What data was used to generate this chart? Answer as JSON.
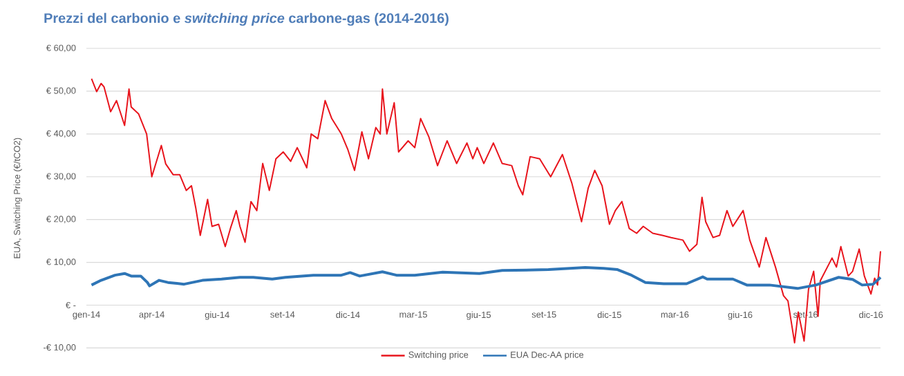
{
  "chart_data": {
    "type": "line",
    "title": "Prezzi del carbonio e *switching price* carbone-gas (2014-2016)",
    "ylabel": "EUA, Switching Price (€/tCO2)",
    "xlim": [
      "2014-01-02",
      "2016-12-18"
    ],
    "xticks": [
      {
        "value": "2014-01-02",
        "label": "gen-14"
      },
      {
        "value": "2014-04-01",
        "label": "apr-14"
      },
      {
        "value": "2014-06-29",
        "label": "giu-14"
      },
      {
        "value": "2014-09-26",
        "label": "set-14"
      },
      {
        "value": "2014-12-24",
        "label": "dic-14"
      },
      {
        "value": "2015-03-23",
        "label": "mar-15"
      },
      {
        "value": "2015-06-20",
        "label": "giu-15"
      },
      {
        "value": "2015-09-17",
        "label": "set-15"
      },
      {
        "value": "2015-12-15",
        "label": "dic-15"
      },
      {
        "value": "2016-03-13",
        "label": "mar-16"
      },
      {
        "value": "2016-06-10",
        "label": "giu-16"
      },
      {
        "value": "2016-09-07",
        "label": "set-16"
      },
      {
        "value": "2016-12-05",
        "label": "dic-16"
      }
    ],
    "ylim": [
      -10,
      60
    ],
    "yticks": [
      {
        "value": -10,
        "label": "-€ 10,00"
      },
      {
        "value": 0,
        "label": "€ -"
      },
      {
        "value": 10,
        "label": "€ 10,00"
      },
      {
        "value": 20,
        "label": "€ 20,00"
      },
      {
        "value": 30,
        "label": "€ 30,00"
      },
      {
        "value": 40,
        "label": "€ 40,00"
      },
      {
        "value": 50,
        "label": "€ 50,00"
      },
      {
        "value": 60,
        "label": "€ 60,00"
      }
    ],
    "grid": "y",
    "legend": "bottom",
    "series": [
      {
        "name": "Switching price",
        "color": "#e8141c",
        "x": [
          "2014-01-09",
          "2014-01-16",
          "2014-01-22",
          "2014-01-26",
          "2014-02-04",
          "2014-02-12",
          "2014-02-23",
          "2014-03-01",
          "2014-03-04",
          "2014-03-14",
          "2014-03-25",
          "2014-04-01",
          "2014-04-14",
          "2014-04-20",
          "2014-04-30",
          "2014-05-09",
          "2014-05-18",
          "2014-05-25",
          "2014-05-31",
          "2014-06-06",
          "2014-06-16",
          "2014-06-22",
          "2014-07-01",
          "2014-07-10",
          "2014-07-17",
          "2014-07-25",
          "2014-07-30",
          "2014-08-06",
          "2014-08-14",
          "2014-08-22",
          "2014-08-30",
          "2014-09-08",
          "2014-09-17",
          "2014-09-27",
          "2014-10-07",
          "2014-10-16",
          "2014-10-29",
          "2014-11-04",
          "2014-11-13",
          "2014-11-23",
          "2014-12-02",
          "2014-12-15",
          "2014-12-24",
          "2015-01-02",
          "2015-01-12",
          "2015-01-21",
          "2015-01-31",
          "2015-02-06",
          "2015-02-09",
          "2015-02-15",
          "2015-02-25",
          "2015-03-03",
          "2015-03-16",
          "2015-03-25",
          "2015-04-02",
          "2015-04-13",
          "2015-04-25",
          "2015-05-08",
          "2015-05-21",
          "2015-06-04",
          "2015-06-12",
          "2015-06-18",
          "2015-06-27",
          "2015-07-10",
          "2015-07-22",
          "2015-08-04",
          "2015-08-13",
          "2015-08-19",
          "2015-08-29",
          "2015-09-11",
          "2015-09-26",
          "2015-10-12",
          "2015-10-25",
          "2015-11-07",
          "2015-11-16",
          "2015-11-25",
          "2015-12-05",
          "2015-12-15",
          "2015-12-23",
          "2016-01-01",
          "2016-01-11",
          "2016-01-21",
          "2016-01-30",
          "2016-02-12",
          "2016-02-25",
          "2016-03-08",
          "2016-03-24",
          "2016-04-02",
          "2016-04-12",
          "2016-04-19",
          "2016-04-24",
          "2016-05-04",
          "2016-05-13",
          "2016-05-23",
          "2016-05-31",
          "2016-06-14",
          "2016-06-23",
          "2016-07-06",
          "2016-07-15",
          "2016-07-28",
          "2016-08-08",
          "2016-08-14",
          "2016-08-23",
          "2016-08-28",
          "2016-09-05",
          "2016-09-11",
          "2016-09-18",
          "2016-09-24",
          "2016-09-27",
          "2016-10-13",
          "2016-10-19",
          "2016-10-25",
          "2016-11-04",
          "2016-11-10",
          "2016-11-19",
          "2016-11-26",
          "2016-12-05",
          "2016-12-10",
          "2016-12-14",
          "2016-12-18"
        ],
        "values": [
          52.9,
          49.9,
          51.8,
          51.0,
          45.2,
          47.8,
          42.0,
          50.5,
          46.3,
          44.7,
          40.0,
          30.0,
          37.3,
          33.0,
          30.5,
          30.5,
          26.8,
          27.9,
          22.6,
          16.3,
          24.7,
          18.4,
          18.9,
          13.7,
          17.9,
          22.1,
          18.4,
          14.7,
          24.2,
          22.1,
          33.1,
          26.8,
          34.2,
          35.8,
          33.6,
          36.8,
          32.1,
          40.0,
          38.9,
          47.8,
          43.6,
          40.0,
          36.3,
          31.5,
          40.5,
          34.2,
          41.5,
          40.0,
          50.5,
          40.0,
          47.3,
          35.8,
          38.4,
          36.8,
          43.6,
          39.4,
          32.6,
          38.4,
          33.1,
          37.9,
          34.2,
          36.8,
          33.1,
          37.9,
          33.1,
          32.6,
          27.9,
          25.8,
          34.7,
          34.2,
          30.0,
          35.2,
          28.4,
          19.5,
          27.3,
          31.5,
          27.9,
          18.9,
          22.1,
          24.2,
          17.9,
          16.8,
          18.4,
          16.8,
          16.3,
          15.8,
          15.2,
          12.6,
          14.2,
          25.2,
          19.5,
          15.8,
          16.3,
          22.1,
          18.4,
          22.1,
          15.2,
          8.9,
          15.8,
          8.9,
          2.2,
          1.0,
          -8.8,
          -1.6,
          -8.4,
          3.7,
          7.9,
          -2.6,
          5.7,
          11.0,
          8.9,
          13.7,
          6.8,
          7.9,
          13.1,
          6.8,
          2.6,
          6.3,
          4.7,
          12.6
        ]
      },
      {
        "name": "EUA Dec-AA price",
        "color": "#2e75b6",
        "x": [
          "2014-01-09",
          "2014-01-22",
          "2014-02-10",
          "2014-02-23",
          "2014-03-04",
          "2014-03-17",
          "2014-03-26",
          "2014-03-29",
          "2014-04-11",
          "2014-04-23",
          "2014-05-15",
          "2014-06-09",
          "2014-07-05",
          "2014-07-30",
          "2014-08-17",
          "2014-09-12",
          "2014-09-30",
          "2014-11-07",
          "2014-12-15",
          "2014-12-27",
          "2015-01-09",
          "2015-02-09",
          "2015-02-28",
          "2015-03-25",
          "2015-05-02",
          "2015-06-21",
          "2015-07-22",
          "2015-09-23",
          "2015-11-12",
          "2015-12-07",
          "2015-12-26",
          "2016-01-14",
          "2016-02-02",
          "2016-02-27",
          "2016-03-29",
          "2016-04-20",
          "2016-04-26",
          "2016-05-31",
          "2016-06-19",
          "2016-07-20",
          "2016-08-27",
          "2016-09-21",
          "2016-10-22",
          "2016-11-10",
          "2016-11-23",
          "2016-12-08",
          "2016-12-18"
        ],
        "values": [
          4.7,
          5.8,
          7.0,
          7.4,
          6.8,
          6.8,
          5.3,
          4.5,
          5.8,
          5.3,
          4.9,
          5.8,
          6.1,
          6.5,
          6.5,
          6.1,
          6.5,
          7.0,
          7.0,
          7.6,
          6.8,
          7.8,
          7.0,
          7.0,
          7.7,
          7.4,
          8.1,
          8.3,
          8.8,
          8.6,
          8.3,
          7.0,
          5.3,
          5.0,
          5.0,
          6.6,
          6.1,
          6.1,
          4.7,
          4.7,
          3.9,
          4.7,
          6.5,
          6.0,
          4.7,
          4.9,
          6.5
        ]
      }
    ]
  }
}
